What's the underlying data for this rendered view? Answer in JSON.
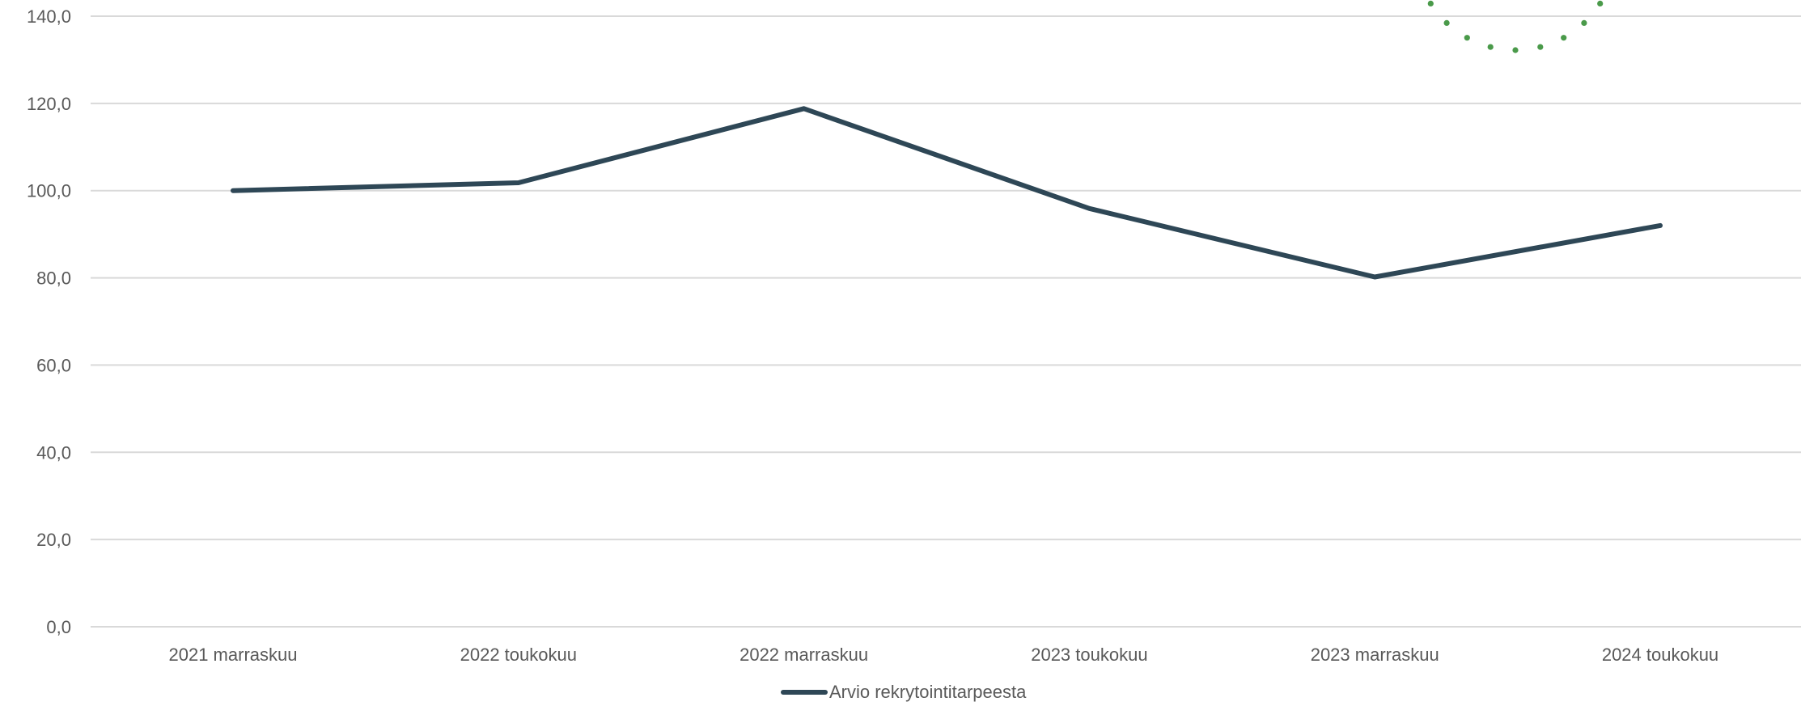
{
  "chart_data": {
    "type": "line",
    "categories": [
      "2021 marraskuu",
      "2022 toukokuu",
      "2022 marraskuu",
      "2023 toukokuu",
      "2023 marraskuu",
      "2024 toukokuu"
    ],
    "series": [
      {
        "name": "Arvio rekrytointitarpeesta",
        "values": [
          100.0,
          101.8,
          118.8,
          95.9,
          80.2,
          92.0
        ],
        "color": "#2E4756"
      }
    ],
    "yticks": [
      "0,0",
      "20,0",
      "40,0",
      "60,0",
      "80,0",
      "100,0",
      "120,0",
      "140,0"
    ],
    "ylim": [
      0,
      140
    ],
    "grid": true,
    "gridColor": "#d9d9d9",
    "legend": "bottom-center",
    "decoration": {
      "type": "dotted-arc",
      "color": "#4A9A4A"
    }
  }
}
